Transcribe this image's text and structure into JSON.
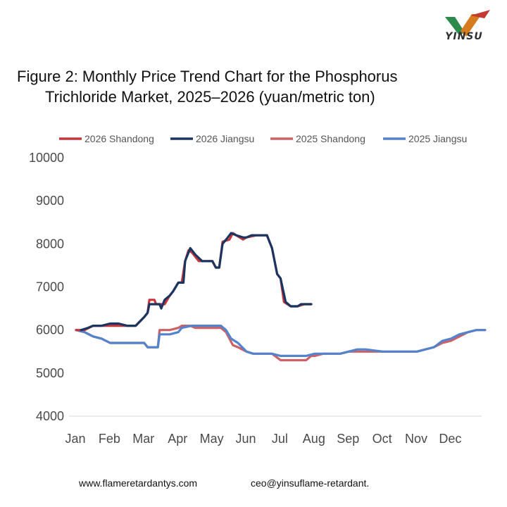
{
  "logo": {
    "text": "YINSU"
  },
  "title": {
    "line1": "Figure 2: Monthly Price Trend Chart for the Phosphorus",
    "line2": "Trichloride Market, 2025–2026 (yuan/metric ton)"
  },
  "footer": {
    "website": "www.flameretardantys.com",
    "email": "ceo@yinsuflame-retardant."
  },
  "chart_data": {
    "type": "line",
    "title": "Figure 2: Monthly Price Trend Chart for the Phosphorus Trichloride Market, 2025–2026 (yuan/metric ton)",
    "xlabel": "",
    "ylabel": "",
    "x_unit": "month",
    "xlim": [
      0,
      11.9
    ],
    "ylim": [
      4000,
      10000
    ],
    "yticks": [
      4000,
      5000,
      6000,
      7000,
      8000,
      9000,
      10000
    ],
    "categories": [
      "Jan",
      "Feb",
      "Mar",
      "Apr",
      "May",
      "Jun",
      "Jul",
      "Aug",
      "Sep",
      "Oct",
      "Nov",
      "Dec"
    ],
    "grid": false,
    "legend": "top",
    "series": [
      {
        "name": "2026 Shandong",
        "color": "#c8363d",
        "points": [
          [
            0,
            6000
          ],
          [
            0.25,
            6000
          ],
          [
            0.5,
            6100
          ],
          [
            0.75,
            6100
          ],
          [
            1,
            6100
          ],
          [
            1.25,
            6100
          ],
          [
            1.5,
            6100
          ],
          [
            1.75,
            6100
          ],
          [
            2,
            6300
          ],
          [
            2.1,
            6400
          ],
          [
            2.15,
            6700
          ],
          [
            2.3,
            6700
          ],
          [
            2.35,
            6600
          ],
          [
            2.5,
            6600
          ],
          [
            2.6,
            6600
          ],
          [
            2.75,
            6800
          ],
          [
            2.85,
            6900
          ],
          [
            3,
            7100
          ],
          [
            3.1,
            7100
          ],
          [
            3.2,
            7600
          ],
          [
            3.3,
            7850
          ],
          [
            3.4,
            7800
          ],
          [
            3.6,
            7600
          ],
          [
            3.8,
            7600
          ],
          [
            4,
            7600
          ],
          [
            4.1,
            7450
          ],
          [
            4.2,
            7450
          ],
          [
            4.3,
            8050
          ],
          [
            4.5,
            8100
          ],
          [
            4.6,
            8250
          ],
          [
            4.7,
            8200
          ],
          [
            4.9,
            8100
          ],
          [
            5,
            8150
          ],
          [
            5.3,
            8200
          ],
          [
            5.6,
            8200
          ],
          [
            5.75,
            7900
          ],
          [
            5.9,
            7300
          ],
          [
            6,
            7200
          ],
          [
            6.1,
            6650
          ],
          [
            6.3,
            6550
          ],
          [
            6.5,
            6550
          ],
          [
            6.7,
            6600
          ],
          [
            6.9,
            6600
          ]
        ]
      },
      {
        "name": "2026 Jiangsu",
        "color": "#1b3561",
        "points": [
          [
            0.15,
            6000
          ],
          [
            0.35,
            6050
          ],
          [
            0.5,
            6100
          ],
          [
            0.75,
            6100
          ],
          [
            1,
            6150
          ],
          [
            1.25,
            6150
          ],
          [
            1.5,
            6100
          ],
          [
            1.75,
            6100
          ],
          [
            2,
            6300
          ],
          [
            2.1,
            6400
          ],
          [
            2.15,
            6600
          ],
          [
            2.3,
            6600
          ],
          [
            2.45,
            6600
          ],
          [
            2.5,
            6500
          ],
          [
            2.6,
            6700
          ],
          [
            2.75,
            6800
          ],
          [
            2.85,
            6900
          ],
          [
            3,
            7100
          ],
          [
            3.15,
            7100
          ],
          [
            3.2,
            7600
          ],
          [
            3.35,
            7900
          ],
          [
            3.5,
            7750
          ],
          [
            3.7,
            7600
          ],
          [
            4,
            7600
          ],
          [
            4.1,
            7450
          ],
          [
            4.2,
            7450
          ],
          [
            4.3,
            8000
          ],
          [
            4.45,
            8150
          ],
          [
            4.55,
            8250
          ],
          [
            4.7,
            8200
          ],
          [
            4.9,
            8150
          ],
          [
            5,
            8150
          ],
          [
            5.15,
            8200
          ],
          [
            5.6,
            8200
          ],
          [
            5.75,
            7900
          ],
          [
            5.9,
            7300
          ],
          [
            6,
            7200
          ],
          [
            6.15,
            6650
          ],
          [
            6.3,
            6550
          ],
          [
            6.5,
            6550
          ],
          [
            6.6,
            6600
          ],
          [
            6.9,
            6600
          ]
        ]
      },
      {
        "name": "2025 Shandong",
        "color": "#cc6266",
        "points": [
          [
            0,
            6000
          ],
          [
            0.25,
            5950
          ],
          [
            0.5,
            5850
          ],
          [
            0.75,
            5800
          ],
          [
            1,
            5700
          ],
          [
            1.5,
            5700
          ],
          [
            2,
            5700
          ],
          [
            2.1,
            5600
          ],
          [
            2.4,
            5600
          ],
          [
            2.45,
            6000
          ],
          [
            2.75,
            6000
          ],
          [
            3,
            6050
          ],
          [
            3.1,
            6100
          ],
          [
            3.35,
            6100
          ],
          [
            3.5,
            6050
          ],
          [
            4,
            6050
          ],
          [
            4.25,
            6050
          ],
          [
            4.4,
            5950
          ],
          [
            4.6,
            5650
          ],
          [
            4.75,
            5600
          ],
          [
            5,
            5500
          ],
          [
            5.2,
            5450
          ],
          [
            5.5,
            5450
          ],
          [
            5.75,
            5450
          ],
          [
            6,
            5300
          ],
          [
            6.2,
            5300
          ],
          [
            6.75,
            5300
          ],
          [
            6.9,
            5400
          ],
          [
            7,
            5400
          ],
          [
            7.25,
            5450
          ],
          [
            7.75,
            5450
          ],
          [
            8,
            5500
          ],
          [
            8.5,
            5500
          ],
          [
            9,
            5500
          ],
          [
            9.5,
            5500
          ],
          [
            10,
            5500
          ],
          [
            10.25,
            5550
          ],
          [
            10.5,
            5600
          ],
          [
            10.75,
            5700
          ],
          [
            11,
            5750
          ],
          [
            11.25,
            5850
          ],
          [
            11.5,
            5950
          ],
          [
            11.75,
            6000
          ],
          [
            12,
            6000
          ]
        ]
      },
      {
        "name": "2025 Jiangsu",
        "color": "#5383cc",
        "points": [
          [
            0,
            6000
          ],
          [
            0.25,
            5950
          ],
          [
            0.5,
            5850
          ],
          [
            0.75,
            5800
          ],
          [
            1,
            5700
          ],
          [
            1.5,
            5700
          ],
          [
            2,
            5700
          ],
          [
            2.1,
            5600
          ],
          [
            2.4,
            5600
          ],
          [
            2.45,
            5900
          ],
          [
            2.75,
            5900
          ],
          [
            3,
            5950
          ],
          [
            3.1,
            6050
          ],
          [
            3.4,
            6100
          ],
          [
            3.75,
            6100
          ],
          [
            4,
            6100
          ],
          [
            4.25,
            6100
          ],
          [
            4.4,
            6000
          ],
          [
            4.55,
            5800
          ],
          [
            4.75,
            5700
          ],
          [
            5,
            5500
          ],
          [
            5.2,
            5450
          ],
          [
            5.5,
            5450
          ],
          [
            5.75,
            5450
          ],
          [
            6,
            5400
          ],
          [
            6.5,
            5400
          ],
          [
            6.75,
            5400
          ],
          [
            7,
            5450
          ],
          [
            7.5,
            5450
          ],
          [
            7.75,
            5450
          ],
          [
            8,
            5500
          ],
          [
            8.25,
            5550
          ],
          [
            8.5,
            5550
          ],
          [
            9,
            5500
          ],
          [
            9.5,
            5500
          ],
          [
            10,
            5500
          ],
          [
            10.25,
            5550
          ],
          [
            10.5,
            5600
          ],
          [
            10.75,
            5750
          ],
          [
            11,
            5800
          ],
          [
            11.25,
            5900
          ],
          [
            11.5,
            5950
          ],
          [
            11.75,
            6000
          ],
          [
            12,
            6000
          ]
        ]
      }
    ]
  }
}
